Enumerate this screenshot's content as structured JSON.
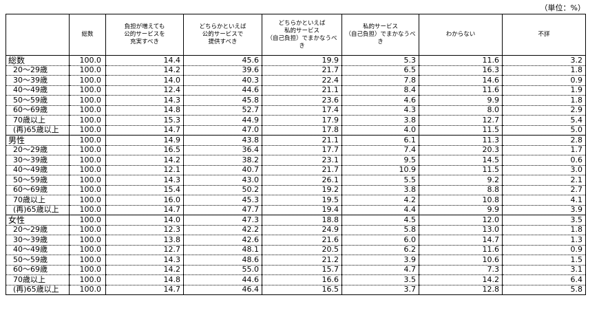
{
  "unit_label": "（単位：%）",
  "headers": [
    "",
    "総数",
    "負担が増えても\n公的サービスを\n充実すべき",
    "どちらかといえば\n公的サービスで\n提供すべき",
    "どちらかといえば\n私的サービス\n（自己負担）でまかなうべき",
    "私的サービス\n（自己負担）でまかなうべき",
    "わからない",
    "不詳"
  ],
  "groups": [
    {
      "rows": [
        {
          "label": "総数",
          "values": [
            "100.0",
            "14.4",
            "45.6",
            "19.9",
            "5.3",
            "11.6",
            "3.2"
          ]
        },
        {
          "label": "20～29歳",
          "values": [
            "100.0",
            "14.2",
            "39.6",
            "21.7",
            "6.5",
            "16.3",
            "1.8"
          ]
        },
        {
          "label": "30～39歳",
          "values": [
            "100.0",
            "14.0",
            "40.3",
            "22.4",
            "7.8",
            "14.6",
            "0.9"
          ]
        },
        {
          "label": "40～49歳",
          "values": [
            "100.0",
            "12.4",
            "44.6",
            "21.1",
            "8.4",
            "11.6",
            "1.9"
          ]
        },
        {
          "label": "50～59歳",
          "values": [
            "100.0",
            "14.3",
            "45.8",
            "23.6",
            "4.6",
            "9.9",
            "1.8"
          ]
        },
        {
          "label": "60～69歳",
          "values": [
            "100.0",
            "14.8",
            "52.7",
            "17.4",
            "4.3",
            "8.0",
            "2.9"
          ]
        },
        {
          "label": "70歳以上",
          "values": [
            "100.0",
            "15.3",
            "44.9",
            "17.9",
            "3.8",
            "12.7",
            "5.4"
          ]
        },
        {
          "label": "(再)65歳以上",
          "values": [
            "100.0",
            "14.7",
            "47.0",
            "17.8",
            "4.0",
            "11.5",
            "5.0"
          ]
        }
      ]
    },
    {
      "rows": [
        {
          "label": "男性",
          "values": [
            "100.0",
            "14.9",
            "43.8",
            "21.1",
            "6.1",
            "11.3",
            "2.8"
          ]
        },
        {
          "label": "20～29歳",
          "values": [
            "100.0",
            "16.5",
            "36.4",
            "17.7",
            "7.4",
            "20.3",
            "1.7"
          ]
        },
        {
          "label": "30～39歳",
          "values": [
            "100.0",
            "14.2",
            "38.2",
            "23.1",
            "9.5",
            "14.5",
            "0.6"
          ]
        },
        {
          "label": "40～49歳",
          "values": [
            "100.0",
            "12.1",
            "40.7",
            "21.7",
            "10.9",
            "11.5",
            "3.0"
          ]
        },
        {
          "label": "50～59歳",
          "values": [
            "100.0",
            "14.3",
            "43.0",
            "26.1",
            "5.5",
            "9.2",
            "2.1"
          ]
        },
        {
          "label": "60～69歳",
          "values": [
            "100.0",
            "15.4",
            "50.2",
            "19.2",
            "3.8",
            "8.8",
            "2.7"
          ]
        },
        {
          "label": "70歳以上",
          "values": [
            "100.0",
            "16.0",
            "45.3",
            "19.5",
            "4.2",
            "10.8",
            "4.1"
          ]
        },
        {
          "label": "(再)65歳以上",
          "values": [
            "100.0",
            "14.7",
            "47.7",
            "19.4",
            "4.4",
            "9.9",
            "3.9"
          ]
        }
      ]
    },
    {
      "rows": [
        {
          "label": "女性",
          "values": [
            "100.0",
            "14.0",
            "47.3",
            "18.8",
            "4.5",
            "12.0",
            "3.5"
          ]
        },
        {
          "label": "20～29歳",
          "values": [
            "100.0",
            "12.3",
            "42.2",
            "24.9",
            "5.8",
            "13.0",
            "1.8"
          ]
        },
        {
          "label": "30～39歳",
          "values": [
            "100.0",
            "13.8",
            "42.6",
            "21.6",
            "6.0",
            "14.7",
            "1.3"
          ]
        },
        {
          "label": "40～49歳",
          "values": [
            "100.0",
            "12.7",
            "48.1",
            "20.5",
            "6.2",
            "11.6",
            "0.9"
          ]
        },
        {
          "label": "50～59歳",
          "values": [
            "100.0",
            "14.3",
            "48.6",
            "21.2",
            "3.9",
            "10.6",
            "1.5"
          ]
        },
        {
          "label": "60～69歳",
          "values": [
            "100.0",
            "14.2",
            "55.0",
            "15.7",
            "4.7",
            "7.3",
            "3.1"
          ]
        },
        {
          "label": "70歳以上",
          "values": [
            "100.0",
            "14.8",
            "44.6",
            "16.6",
            "3.5",
            "14.2",
            "6.4"
          ]
        },
        {
          "label": "(再)65歳以上",
          "values": [
            "100.0",
            "14.7",
            "46.4",
            "16.5",
            "3.7",
            "12.8",
            "5.8"
          ]
        }
      ]
    }
  ]
}
